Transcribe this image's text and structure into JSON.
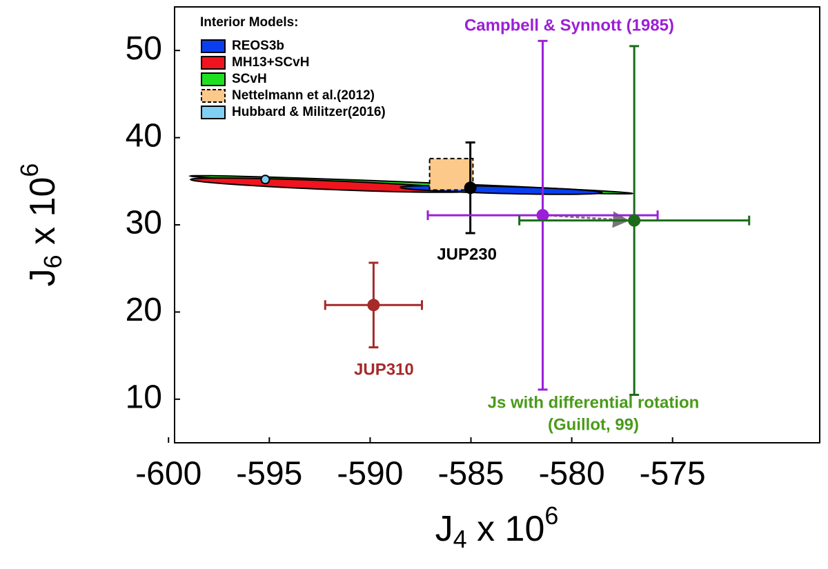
{
  "chart_data": {
    "type": "errorbar",
    "x_label": {
      "base": "J",
      "sub": "4",
      "mid": " x 10",
      "sup": "6"
    },
    "y_label": {
      "base": "J",
      "sub": "6",
      "mid": " x 10",
      "sup": "6"
    },
    "xlim": [
      -599.7,
      -567.7
    ],
    "ylim": [
      5,
      55
    ],
    "xticks": [
      -600,
      -595,
      -590,
      -585,
      -580,
      -575
    ],
    "yticks": [
      10,
      20,
      30,
      40,
      50
    ],
    "legend_title": "Interior Models:",
    "models": [
      {
        "name": "REOS3b",
        "color": "#0a3ff0",
        "x": [
          -588.5,
          -578.5
        ],
        "y": [
          34.3,
          33.7
        ],
        "width": 0.8
      },
      {
        "name": "MH13+SCvH",
        "color": "#f0141e",
        "x": [
          -598.9,
          -585.0
        ],
        "y": [
          35.2,
          33.9
        ],
        "width": 1.0
      },
      {
        "name": "SCvH",
        "color": "#1fe01f",
        "x": [
          -598.9,
          -577.0
        ],
        "y": [
          35.6,
          33.6
        ],
        "width": 0.6
      }
    ],
    "nettelmann": {
      "name": "Nettelmann et al.(2012)",
      "color": "#fdc98a",
      "x": [
        -587.05,
        -584.9
      ],
      "y": [
        34.0,
        37.6
      ]
    },
    "hubbard": {
      "name": "Hubbard & Militzer(2016)",
      "color": "#7fd0f2",
      "x": -595.2,
      "y": 35.2
    },
    "measurements": [
      {
        "label": [
          "JUP310"
        ],
        "color": "#a52a2a",
        "label_color": "#a52a2a",
        "x": -589.83,
        "y": 20.8,
        "xerr": 2.4,
        "yerr": 4.85
      },
      {
        "label": [
          "JUP230"
        ],
        "color": "#000000",
        "label_color": "#000000",
        "x": -585.03,
        "y": 34.25,
        "yerr": 5.2
      },
      {
        "label": [
          "Campbell & Synnott (1985)"
        ],
        "color": "#9b1fd6",
        "label_color": "#9b1fd6",
        "x": -581.44,
        "y": 31.1,
        "xerr": 5.7,
        "yerr": 20
      },
      {
        "label": [
          "Js with differential rotation",
          "(Guillot, 99)"
        ],
        "color": "#1a6b1a",
        "label_color": "#4a9a1a",
        "x": -576.9,
        "y": 30.5,
        "xerr": 5.7,
        "yerr": 20
      }
    ]
  }
}
